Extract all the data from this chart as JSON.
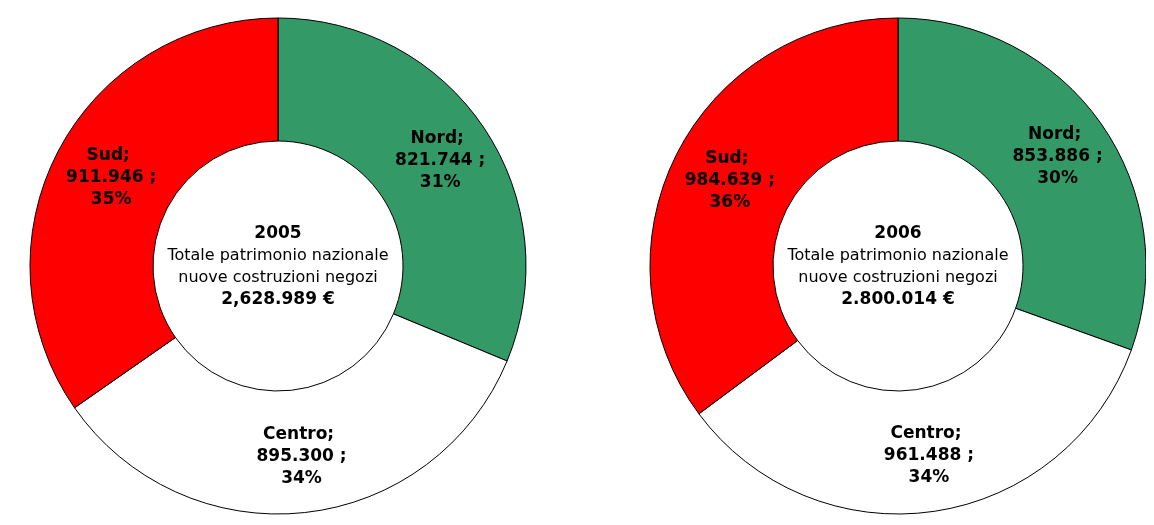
{
  "chart_data": [
    {
      "type": "donut",
      "title": "2005",
      "subtitle": "Totale patrimonio nazionale nuove costruzioni negozi",
      "annotations": [
        "2,628.989 €"
      ],
      "categories": [
        "Nord",
        "Centro",
        "Sud"
      ],
      "values": [
        821.744,
        895.3,
        911.946
      ],
      "colors": [
        "#339966",
        "#ffffff",
        "#ff0000"
      ],
      "value_labels": [
        "; 821.744 ; 31%",
        "; 895.300 ; 34%",
        "; 911.946 ; 35%"
      ]
    },
    {
      "type": "donut",
      "title": "2006",
      "subtitle": "Totale patrimonio nazionale nuove costruzioni negozi",
      "annotations": [
        "2.800.014 €"
      ],
      "categories": [
        "Nord",
        "Centro",
        "Sud"
      ],
      "values": [
        853.886,
        961.488,
        984.639
      ],
      "colors": [
        "#339966",
        "#ffffff",
        "#ff0000"
      ],
      "value_labels": [
        "; 853.886 ; 30%",
        "; 961.488 ; 34%",
        "; 984.639 ; 36%"
      ]
    }
  ]
}
